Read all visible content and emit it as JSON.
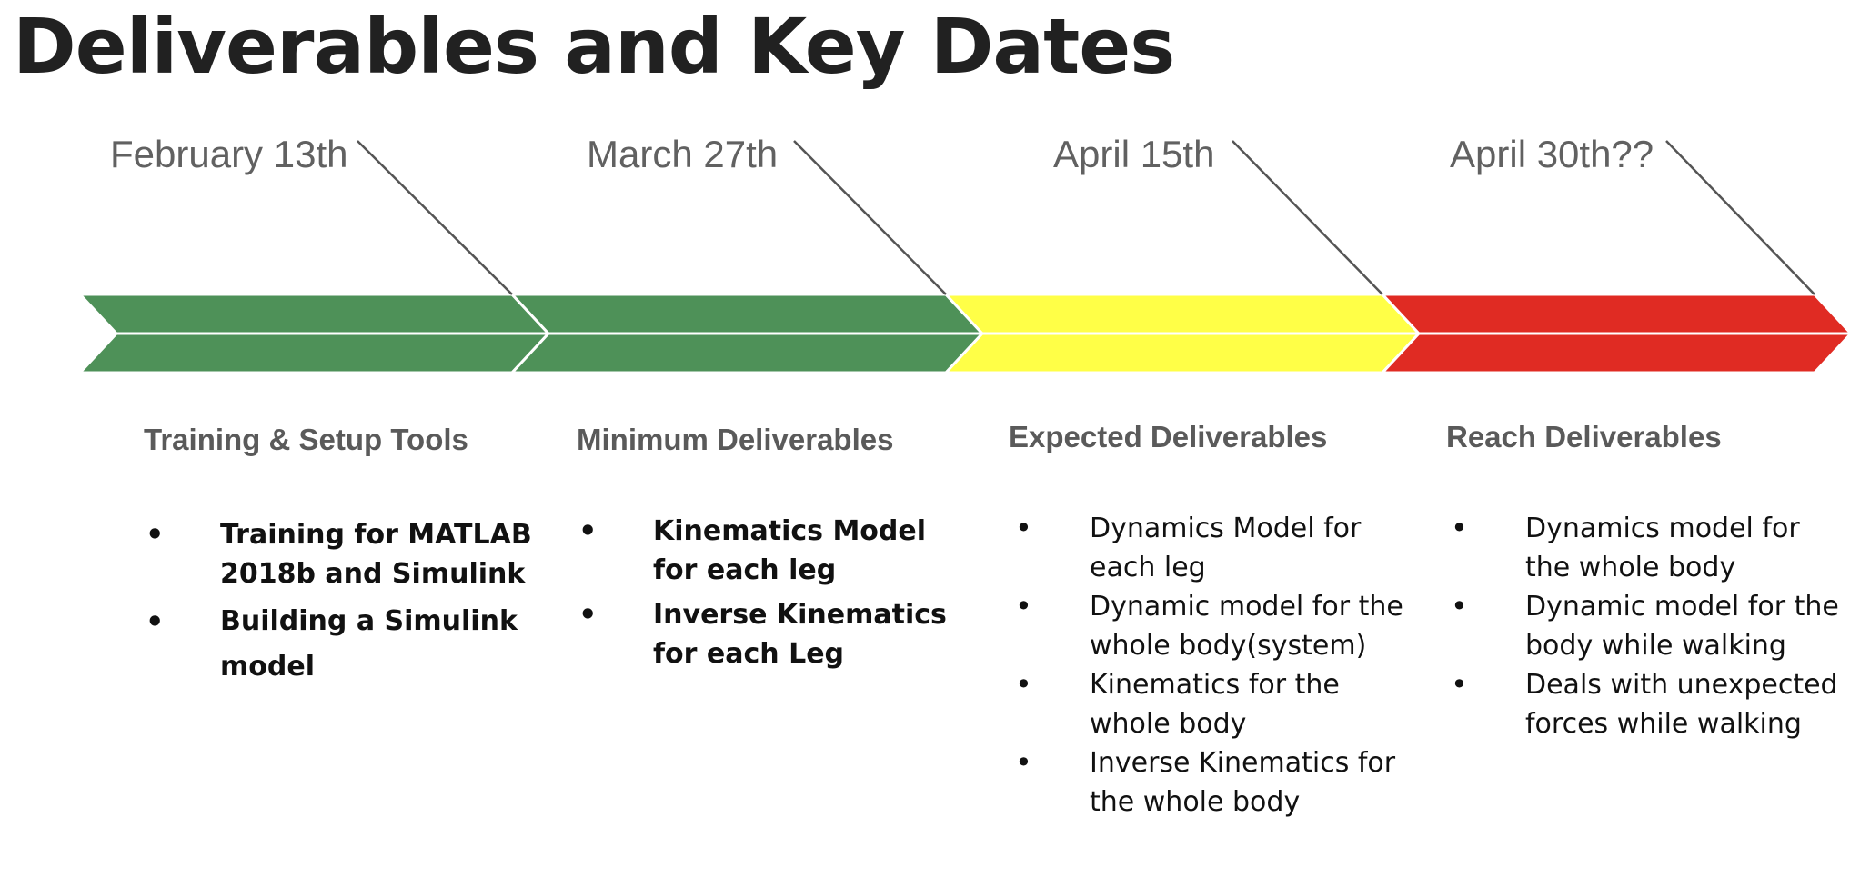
{
  "slide": {
    "title": "Deliverables and Key Dates"
  },
  "colors": {
    "green": "#4e9158",
    "yellow": "#ffff47",
    "red": "#e02b23",
    "leader_line": "#555555"
  },
  "milestones": [
    {
      "date": "February 13th",
      "heading": "Training  & Setup Tools",
      "color": "green",
      "items": [
        "Training for MATLAB 2018b and Simulink",
        "Building a Simulink model"
      ]
    },
    {
      "date": "March 27th",
      "heading": "Minimum Deliverables",
      "color": "green",
      "items": [
        "Kinematics Model for each leg",
        "Inverse Kinematics for each Leg"
      ]
    },
    {
      "date": "April 15th",
      "heading": "Expected Deliverables",
      "color": "yellow",
      "items": [
        "Dynamics Model for each leg",
        "Dynamic model for the whole body(system)",
        "Kinematics for the whole body",
        "Inverse Kinematics for the whole body"
      ]
    },
    {
      "date": "April 30th??",
      "heading": "Reach Deliverables",
      "color": "red",
      "items": [
        "Dynamics model for the whole body",
        "Dynamic model for the body while walking",
        "Deals with unexpected forces while walking"
      ]
    }
  ]
}
